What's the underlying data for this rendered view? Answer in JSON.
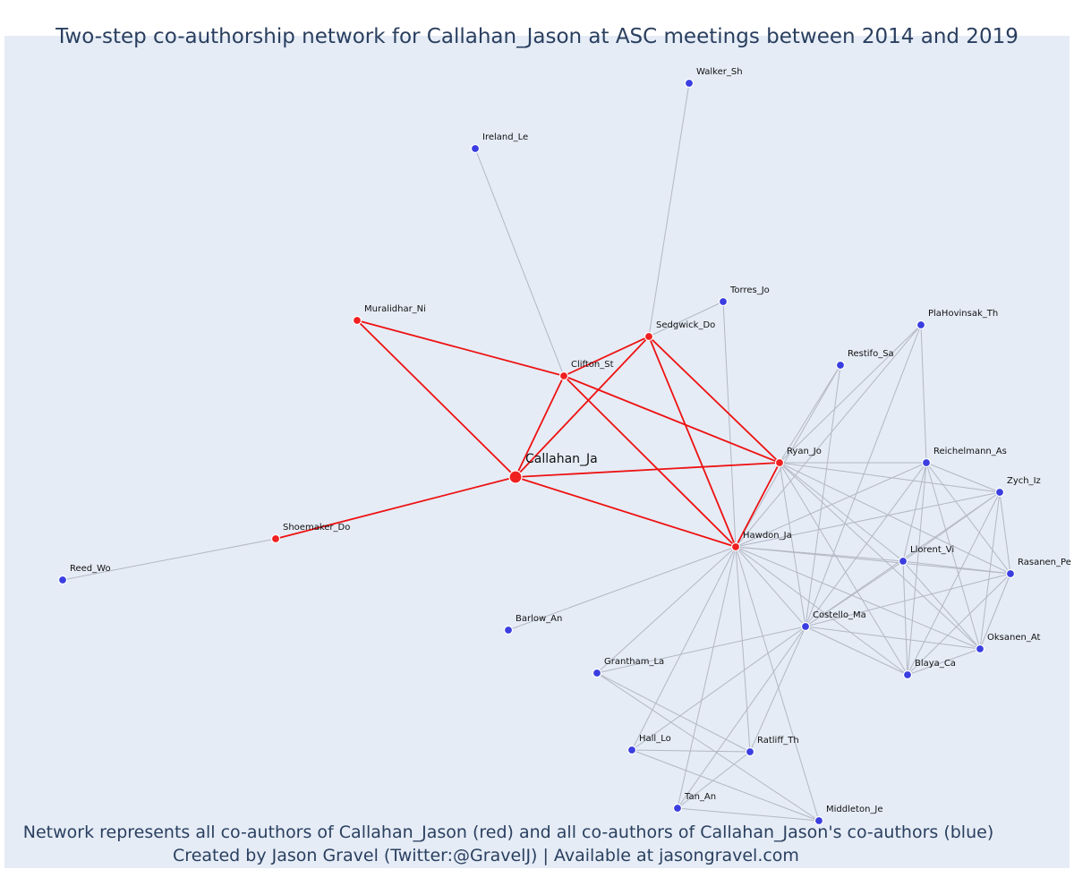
{
  "title": "Two-step co-authorship network for Callahan_Jason at ASC meetings between 2014 and 2019",
  "captions": [
    "Network represents all co-authors of Callahan_Jason (red) and all co-authors of Callahan_Jason's co-authors (blue)",
    "Created by Jason Gravel (Twitter:@GravelJ) | Available at jasongravel.com"
  ],
  "colors": {
    "background": "#e5ecf6",
    "red": "#f02020",
    "blue": "#3a3ee0",
    "red_edge": "#ee1111",
    "grey_edge": "#b3b8c4",
    "text": "#2a3f5f"
  },
  "nodes": [
    {
      "id": "Callahan_Ja",
      "label": "Callahan_Ja",
      "group": "focal"
    },
    {
      "id": "Clifton_St",
      "label": "Clifton_St",
      "group": "red"
    },
    {
      "id": "Sedgwick_Do",
      "label": "Sedgwick_Do",
      "group": "red"
    },
    {
      "id": "Muralidhar_Ni",
      "label": "Muralidhar_Ni",
      "group": "red"
    },
    {
      "id": "Shoemaker_Do",
      "label": "Shoemaker_Do",
      "group": "red"
    },
    {
      "id": "Ryan_Jo",
      "label": "Ryan_Jo",
      "group": "red"
    },
    {
      "id": "Hawdon_Ja",
      "label": "Hawdon_Ja",
      "group": "red"
    },
    {
      "id": "Walker_Sh",
      "label": "Walker_Sh",
      "group": "blue"
    },
    {
      "id": "Ireland_Le",
      "label": "Ireland_Le",
      "group": "blue"
    },
    {
      "id": "Torres_Jo",
      "label": "Torres_Jo",
      "group": "blue"
    },
    {
      "id": "PlaHovinsak_Th",
      "label": "PlaHovinsak_Th",
      "group": "blue"
    },
    {
      "id": "Restifo_Sa",
      "label": "Restifo_Sa",
      "group": "blue"
    },
    {
      "id": "Reichelmann_As",
      "label": "Reichelmann_As",
      "group": "blue"
    },
    {
      "id": "Zych_Iz",
      "label": "Zych_Iz",
      "group": "blue"
    },
    {
      "id": "Llorent_Vi",
      "label": "Llorent_Vi",
      "group": "blue"
    },
    {
      "id": "Rasanen_Pe",
      "label": "Rasanen_Pe",
      "group": "blue"
    },
    {
      "id": "Costello_Ma",
      "label": "Costello_Ma",
      "group": "blue"
    },
    {
      "id": "Oksanen_At",
      "label": "Oksanen_At",
      "group": "blue"
    },
    {
      "id": "Blaya_Ca",
      "label": "Blaya_Ca",
      "group": "blue"
    },
    {
      "id": "Barlow_An",
      "label": "Barlow_An",
      "group": "blue"
    },
    {
      "id": "Grantham_La",
      "label": "Grantham_La",
      "group": "blue"
    },
    {
      "id": "Hall_Lo",
      "label": "Hall_Lo",
      "group": "blue"
    },
    {
      "id": "Ratliff_Th",
      "label": "Ratliff_Th",
      "group": "blue"
    },
    {
      "id": "Tan_An",
      "label": "Tan_An",
      "group": "blue"
    },
    {
      "id": "Middleton_Je",
      "label": "Middleton_Je",
      "group": "blue"
    },
    {
      "id": "Reed_Wo",
      "label": "Reed_Wo",
      "group": "blue"
    }
  ],
  "edges": [
    [
      "Callahan_Ja",
      "Clifton_St",
      "red"
    ],
    [
      "Callahan_Ja",
      "Sedgwick_Do",
      "red"
    ],
    [
      "Callahan_Ja",
      "Muralidhar_Ni",
      "red"
    ],
    [
      "Callahan_Ja",
      "Shoemaker_Do",
      "red"
    ],
    [
      "Callahan_Ja",
      "Ryan_Jo",
      "red"
    ],
    [
      "Callahan_Ja",
      "Hawdon_Ja",
      "red"
    ],
    [
      "Clifton_St",
      "Sedgwick_Do",
      "red"
    ],
    [
      "Clifton_St",
      "Muralidhar_Ni",
      "red"
    ],
    [
      "Clifton_St",
      "Ryan_Jo",
      "red"
    ],
    [
      "Clifton_St",
      "Hawdon_Ja",
      "red"
    ],
    [
      "Sedgwick_Do",
      "Ryan_Jo",
      "red"
    ],
    [
      "Sedgwick_Do",
      "Hawdon_Ja",
      "red"
    ],
    [
      "Ryan_Jo",
      "Hawdon_Ja",
      "red"
    ],
    [
      "Shoemaker_Do",
      "Reed_Wo",
      "grey"
    ],
    [
      "Clifton_St",
      "Ireland_Le",
      "grey"
    ],
    [
      "Sedgwick_Do",
      "Walker_Sh",
      "grey"
    ],
    [
      "Sedgwick_Do",
      "Torres_Jo",
      "grey"
    ],
    [
      "Hawdon_Ja",
      "Torres_Jo",
      "grey"
    ],
    [
      "Hawdon_Ja",
      "Barlow_An",
      "grey"
    ],
    [
      "Ryan_Jo",
      "PlaHovinsak_Th",
      "grey"
    ],
    [
      "Ryan_Jo",
      "Restifo_Sa",
      "grey"
    ],
    [
      "Ryan_Jo",
      "Reichelmann_As",
      "grey"
    ],
    [
      "Ryan_Jo",
      "Zych_Iz",
      "grey"
    ],
    [
      "Ryan_Jo",
      "Llorent_Vi",
      "grey"
    ],
    [
      "Ryan_Jo",
      "Rasanen_Pe",
      "grey"
    ],
    [
      "Ryan_Jo",
      "Costello_Ma",
      "grey"
    ],
    [
      "Ryan_Jo",
      "Oksanen_At",
      "grey"
    ],
    [
      "Ryan_Jo",
      "Blaya_Ca",
      "grey"
    ],
    [
      "Hawdon_Ja",
      "PlaHovinsak_Th",
      "grey"
    ],
    [
      "Hawdon_Ja",
      "Restifo_Sa",
      "grey"
    ],
    [
      "Hawdon_Ja",
      "Reichelmann_As",
      "grey"
    ],
    [
      "Hawdon_Ja",
      "Zych_Iz",
      "grey"
    ],
    [
      "Hawdon_Ja",
      "Llorent_Vi",
      "grey"
    ],
    [
      "Hawdon_Ja",
      "Rasanen_Pe",
      "grey"
    ],
    [
      "Hawdon_Ja",
      "Costello_Ma",
      "grey"
    ],
    [
      "Hawdon_Ja",
      "Oksanen_At",
      "grey"
    ],
    [
      "Hawdon_Ja",
      "Blaya_Ca",
      "grey"
    ],
    [
      "Hawdon_Ja",
      "Grantham_La",
      "grey"
    ],
    [
      "Hawdon_Ja",
      "Hall_Lo",
      "grey"
    ],
    [
      "Hawdon_Ja",
      "Ratliff_Th",
      "grey"
    ],
    [
      "Hawdon_Ja",
      "Tan_An",
      "grey"
    ],
    [
      "Hawdon_Ja",
      "Middleton_Je",
      "grey"
    ],
    [
      "PlaHovinsak_Th",
      "Reichelmann_As",
      "grey"
    ],
    [
      "PlaHovinsak_Th",
      "Costello_Ma",
      "grey"
    ],
    [
      "Restifo_Sa",
      "Costello_Ma",
      "grey"
    ],
    [
      "Reichelmann_As",
      "Zych_Iz",
      "grey"
    ],
    [
      "Reichelmann_As",
      "Llorent_Vi",
      "grey"
    ],
    [
      "Reichelmann_As",
      "Rasanen_Pe",
      "grey"
    ],
    [
      "Reichelmann_As",
      "Costello_Ma",
      "grey"
    ],
    [
      "Reichelmann_As",
      "Oksanen_At",
      "grey"
    ],
    [
      "Reichelmann_As",
      "Blaya_Ca",
      "grey"
    ],
    [
      "Zych_Iz",
      "Llorent_Vi",
      "grey"
    ],
    [
      "Zych_Iz",
      "Rasanen_Pe",
      "grey"
    ],
    [
      "Zych_Iz",
      "Costello_Ma",
      "grey"
    ],
    [
      "Zych_Iz",
      "Oksanen_At",
      "grey"
    ],
    [
      "Zych_Iz",
      "Blaya_Ca",
      "grey"
    ],
    [
      "Llorent_Vi",
      "Rasanen_Pe",
      "grey"
    ],
    [
      "Llorent_Vi",
      "Costello_Ma",
      "grey"
    ],
    [
      "Llorent_Vi",
      "Oksanen_At",
      "grey"
    ],
    [
      "Llorent_Vi",
      "Blaya_Ca",
      "grey"
    ],
    [
      "Rasanen_Pe",
      "Costello_Ma",
      "grey"
    ],
    [
      "Rasanen_Pe",
      "Oksanen_At",
      "grey"
    ],
    [
      "Rasanen_Pe",
      "Blaya_Ca",
      "grey"
    ],
    [
      "Costello_Ma",
      "Oksanen_At",
      "grey"
    ],
    [
      "Costello_Ma",
      "Blaya_Ca",
      "grey"
    ],
    [
      "Oksanen_At",
      "Blaya_Ca",
      "grey"
    ],
    [
      "Costello_Ma",
      "Grantham_La",
      "grey"
    ],
    [
      "Costello_Ma",
      "Hall_Lo",
      "grey"
    ],
    [
      "Costello_Ma",
      "Ratliff_Th",
      "grey"
    ],
    [
      "Costello_Ma",
      "Tan_An",
      "grey"
    ],
    [
      "Grantham_La",
      "Ratliff_Th",
      "grey"
    ],
    [
      "Grantham_La",
      "Middleton_Je",
      "grey"
    ],
    [
      "Hall_Lo",
      "Ratliff_Th",
      "grey"
    ],
    [
      "Hall_Lo",
      "Middleton_Je",
      "grey"
    ],
    [
      "Ratliff_Th",
      "Tan_An",
      "grey"
    ],
    [
      "Tan_An",
      "Middleton_Je",
      "grey"
    ]
  ]
}
